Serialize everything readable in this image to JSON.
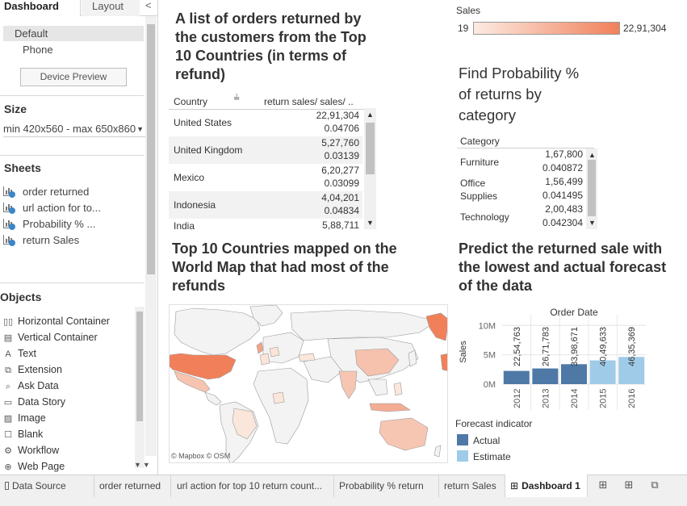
{
  "left_panel": {
    "tabs": {
      "dashboard": "Dashboard",
      "layout": "Layout",
      "collapse": "<"
    },
    "devices": {
      "default": "Default",
      "phone": "Phone",
      "preview_button": "Device Preview"
    },
    "size": {
      "title": "Size",
      "value": "min 420x560 - max 650x860"
    },
    "sheets": {
      "title": "Sheets",
      "items": [
        "order returned",
        "url action for to...",
        "Probability % ...",
        "return Sales"
      ]
    },
    "objects": {
      "title": "Objects",
      "items": [
        {
          "label": "Horizontal Container",
          "icon": "horizontal-container-icon",
          "glyph": "▯▯"
        },
        {
          "label": "Vertical Container",
          "icon": "vertical-container-icon",
          "glyph": "▤"
        },
        {
          "label": "Text",
          "icon": "text-icon",
          "glyph": "A"
        },
        {
          "label": "Extension",
          "icon": "extension-icon",
          "glyph": "⧉"
        },
        {
          "label": "Ask Data",
          "icon": "ask-data-icon",
          "glyph": "⌕"
        },
        {
          "label": "Data Story",
          "icon": "data-story-icon",
          "glyph": "▭"
        },
        {
          "label": "Image",
          "icon": "image-icon",
          "glyph": "▨"
        },
        {
          "label": "Blank",
          "icon": "blank-icon",
          "glyph": "☐"
        },
        {
          "label": "Workflow",
          "icon": "workflow-icon",
          "glyph": "⚙"
        },
        {
          "label": "Web Page",
          "icon": "web-page-icon",
          "glyph": "⊕"
        }
      ]
    }
  },
  "dashboard": {
    "title_orders": "A list of orders returned by the customers from the Top 10 Countries (in terms of refund)",
    "title_probability": "Find Probability % of returns by category",
    "title_map": "Top 10 Countries mapped on the World Map that had most of the refunds",
    "title_predict": "Predict the returned sale with the lowest and actual forecast of the data",
    "legend": {
      "title": "Sales",
      "min": "19",
      "max": "22,91,304",
      "color_low": "#fcebe3",
      "color_high": "#f1805a"
    },
    "country_table": {
      "headers": {
        "country": "Country",
        "sort_icon": "≟",
        "measure": "return sales/ sales/ .."
      },
      "rows": [
        {
          "country": "United States",
          "sales": "22,91,304",
          "ratio": "0.04706"
        },
        {
          "country": "United Kingdom",
          "sales": "5,27,760",
          "ratio": "0.03139"
        },
        {
          "country": "Mexico",
          "sales": "6,20,277",
          "ratio": "0.03099"
        },
        {
          "country": "Indonesia",
          "sales": "4,04,201",
          "ratio": "0.04834"
        },
        {
          "country": "India",
          "sales": "5,88,711",
          "ratio": ""
        }
      ]
    },
    "category_table": {
      "header": "Category",
      "rows": [
        {
          "category": "Furniture",
          "sales": "1,67,800",
          "ratio": "0.040872"
        },
        {
          "category": "Office Supplies",
          "sales": "1,56,499",
          "ratio": "0.041495"
        },
        {
          "category": "Technology",
          "sales": "2,00,483",
          "ratio": "0.042304"
        }
      ]
    },
    "map_credit": "© Mapbox © OSM",
    "forecast_legend": {
      "title": "Forecast indicator",
      "actual": "Actual",
      "estimate": "Estimate"
    }
  },
  "chart_data": {
    "type": "bar",
    "title": "Order Date",
    "ylabel": "Sales",
    "xlabel": "",
    "categories": [
      "2012",
      "2013",
      "2014",
      "2015",
      "2016"
    ],
    "values": [
      2254763,
      2671783,
      3398671,
      4049633,
      4635369
    ],
    "value_labels": [
      "22,54,763",
      "26,71,783",
      "33,98,671",
      "40,49,633",
      "46,35,369"
    ],
    "indicator": [
      "Actual",
      "Actual",
      "Actual",
      "Estimate",
      "Estimate"
    ],
    "yticks": [
      0,
      5000000,
      10000000
    ],
    "ytick_labels": [
      "0M",
      "5M",
      "10M"
    ],
    "ylim": [
      0,
      11000000
    ],
    "colors": {
      "Actual": "#4e79a7",
      "Estimate": "#a0cbe8"
    }
  },
  "bottom_tabs": {
    "data_source": "Data Source",
    "tabs": [
      "order returned",
      "url action for top 10 return count...",
      "Probability % return",
      "return Sales"
    ],
    "active": "Dashboard 1"
  }
}
